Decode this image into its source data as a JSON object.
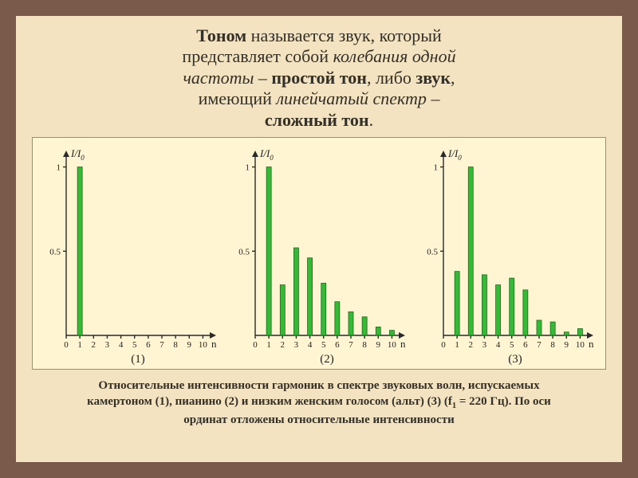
{
  "title": {
    "t1_bold": "Тоном",
    "t1_rest": " называется звук, который",
    "t2_a": "представляет собой ",
    "t2_em": "колебания одной",
    "t3_em": "частоты",
    "t3_mid": " – ",
    "t3_bold": "простой тон",
    "t3_rest": ", либо ",
    "t3_bold2": "звук",
    "t3_comma": ",",
    "t4_a": "имеющий ",
    "t4_em": "линейчатый спектр",
    "t4_rest": " –",
    "t5_bold": "сложный тон",
    "t5_dot": "."
  },
  "charts": {
    "common": {
      "x_ticks": [
        "0",
        "1",
        "2",
        "3",
        "4",
        "5",
        "6",
        "7",
        "8",
        "9",
        "10"
      ],
      "y_ticks": [
        {
          "v": 0.5,
          "l": "0.5"
        },
        {
          "v": 1,
          "l": "1"
        }
      ],
      "y_label": "I/I",
      "y_label_sub": "0",
      "x_label": "n",
      "bar_fill": "#38b838",
      "bar_stroke": "#157015",
      "axis_color": "#2a2a2a",
      "bg": "#fff5d2"
    },
    "panels": [
      {
        "label": "(1)",
        "bars": [
          {
            "n": 1,
            "v": 1.0
          }
        ]
      },
      {
        "label": "(2)",
        "bars": [
          {
            "n": 1,
            "v": 1.0
          },
          {
            "n": 2,
            "v": 0.3
          },
          {
            "n": 3,
            "v": 0.52
          },
          {
            "n": 4,
            "v": 0.46
          },
          {
            "n": 5,
            "v": 0.31
          },
          {
            "n": 6,
            "v": 0.2
          },
          {
            "n": 7,
            "v": 0.14
          },
          {
            "n": 8,
            "v": 0.11
          },
          {
            "n": 9,
            "v": 0.05
          },
          {
            "n": 10,
            "v": 0.03
          }
        ]
      },
      {
        "label": "(3)",
        "bars": [
          {
            "n": 1,
            "v": 0.38
          },
          {
            "n": 2,
            "v": 1.0
          },
          {
            "n": 3,
            "v": 0.36
          },
          {
            "n": 4,
            "v": 0.3
          },
          {
            "n": 5,
            "v": 0.34
          },
          {
            "n": 6,
            "v": 0.27
          },
          {
            "n": 7,
            "v": 0.09
          },
          {
            "n": 8,
            "v": 0.08
          },
          {
            "n": 9,
            "v": 0.02
          },
          {
            "n": 10,
            "v": 0.04
          }
        ]
      }
    ]
  },
  "caption": {
    "line1": "Относительные интенсивности гармоник в спектре звуковых волн, испускаемых",
    "line2a": "камертоном (1), пианино (2) и низким женским голосом (альт) (3) (f",
    "line2sub": "1",
    "line2b": " = 220 Гц). По оси",
    "line3": "ординат отложены относительные интенсивности"
  }
}
